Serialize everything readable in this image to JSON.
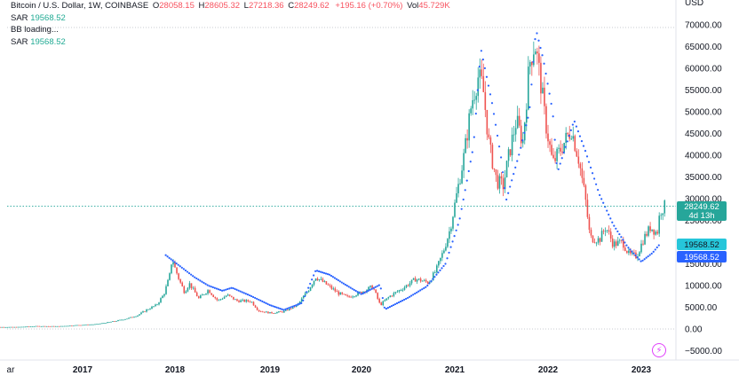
{
  "legend": {
    "symbol": "Bitcoin / U.S. Dollar, 1W, COINBASE",
    "open_key": "O",
    "open": "28058.15",
    "high_key": "H",
    "high": "28605.32",
    "low_key": "L",
    "low": "27218.36",
    "close_key": "C",
    "close": "28249.62",
    "change": "+195.16 (+0.70%)",
    "vol_key": "Vol",
    "vol": "45.729K",
    "indicators": [
      {
        "name": "SAR",
        "value": "19568.52"
      },
      {
        "name": "BB loading...",
        "value": ""
      },
      {
        "name": "SAR",
        "value": "19568.52"
      }
    ]
  },
  "colors": {
    "up": "#26a69a",
    "down": "#ef5350",
    "sar": "#2962ff",
    "price_line": "#26a69a",
    "sar_badge_teal": "#26c6da",
    "sar_badge_blue": "#2962ff"
  },
  "axis": {
    "currency": "USD",
    "right_ticks": [
      "70000.00",
      "65000.00",
      "60000.00",
      "55000.00",
      "50000.00",
      "45000.00",
      "40000.00",
      "35000.00",
      "30000.00",
      "25000.00",
      "20000.00",
      "15000.00",
      "10000.00",
      "5000.00",
      "0.00",
      "−5000.00"
    ],
    "x_ticks": [
      "ar",
      "2017",
      "2018",
      "2019",
      "2020",
      "2021",
      "2022",
      "2023"
    ]
  },
  "badges": {
    "price": "28249.62",
    "countdown": "4d 13h",
    "sar1": "19568.52",
    "sar2": "19568.52"
  },
  "chart_data": {
    "type": "candlestick",
    "title": "Bitcoin / U.S. Dollar, 1W, COINBASE",
    "ylim": [
      -5000,
      70000
    ],
    "xlim": [
      2016.0,
      2023.4
    ],
    "last_close": 28249.62,
    "sar_last": 19568.52,
    "price_path": [
      [
        2016.0,
        430
      ],
      [
        2016.3,
        450
      ],
      [
        2016.5,
        650
      ],
      [
        2016.75,
        620
      ],
      [
        2016.95,
        900
      ],
      [
        2017.15,
        1100
      ],
      [
        2017.35,
        1800
      ],
      [
        2017.5,
        2500
      ],
      [
        2017.6,
        3200
      ],
      [
        2017.7,
        4500
      ],
      [
        2017.8,
        5500
      ],
      [
        2017.88,
        8000
      ],
      [
        2017.94,
        12000
      ],
      [
        2017.97,
        16500
      ],
      [
        2018.0,
        14000
      ],
      [
        2018.05,
        11000
      ],
      [
        2018.1,
        8500
      ],
      [
        2018.15,
        10500
      ],
      [
        2018.25,
        7000
      ],
      [
        2018.35,
        9000
      ],
      [
        2018.45,
        6500
      ],
      [
        2018.55,
        7800
      ],
      [
        2018.65,
        6500
      ],
      [
        2018.8,
        6400
      ],
      [
        2018.88,
        4200
      ],
      [
        2019.0,
        3700
      ],
      [
        2019.15,
        4000
      ],
      [
        2019.3,
        5500
      ],
      [
        2019.42,
        9000
      ],
      [
        2019.5,
        12000
      ],
      [
        2019.6,
        10500
      ],
      [
        2019.75,
        8200
      ],
      [
        2019.85,
        7300
      ],
      [
        2020.0,
        8500
      ],
      [
        2020.12,
        9800
      ],
      [
        2020.2,
        5500
      ],
      [
        2020.3,
        7500
      ],
      [
        2020.45,
        9500
      ],
      [
        2020.58,
        11500
      ],
      [
        2020.72,
        10700
      ],
      [
        2020.8,
        13500
      ],
      [
        2020.88,
        18000
      ],
      [
        2020.95,
        23000
      ],
      [
        2021.03,
        32000
      ],
      [
        2021.1,
        40000
      ],
      [
        2021.18,
        52000
      ],
      [
        2021.25,
        58000
      ],
      [
        2021.3,
        56000
      ],
      [
        2021.37,
        42000
      ],
      [
        2021.45,
        34000
      ],
      [
        2021.52,
        33000
      ],
      [
        2021.58,
        40000
      ],
      [
        2021.66,
        48000
      ],
      [
        2021.73,
        43000
      ],
      [
        2021.8,
        61000
      ],
      [
        2021.86,
        66000
      ],
      [
        2021.92,
        57000
      ],
      [
        2021.97,
        48000
      ],
      [
        2022.05,
        38000
      ],
      [
        2022.15,
        42000
      ],
      [
        2022.25,
        46000
      ],
      [
        2022.33,
        39000
      ],
      [
        2022.4,
        30000
      ],
      [
        2022.45,
        21000
      ],
      [
        2022.55,
        20500
      ],
      [
        2022.62,
        23500
      ],
      [
        2022.7,
        19500
      ],
      [
        2022.8,
        20000
      ],
      [
        2022.87,
        17000
      ],
      [
        2022.95,
        16800
      ],
      [
        2023.03,
        21000
      ],
      [
        2023.1,
        23500
      ],
      [
        2023.17,
        22000
      ],
      [
        2023.2,
        27000
      ],
      [
        2023.25,
        28250
      ]
    ],
    "sar_path": [
      [
        2017.9,
        17000
      ],
      [
        2018.05,
        14500
      ],
      [
        2018.2,
        12000
      ],
      [
        2018.35,
        10000
      ],
      [
        2018.5,
        8800
      ],
      [
        2018.6,
        9500
      ],
      [
        2018.8,
        7600
      ],
      [
        2019.0,
        5500
      ],
      [
        2019.15,
        4400
      ],
      [
        2019.35,
        6000
      ],
      [
        2019.5,
        13500
      ],
      [
        2019.65,
        12500
      ],
      [
        2019.8,
        10500
      ],
      [
        2020.0,
        8000
      ],
      [
        2020.2,
        10200
      ],
      [
        2020.25,
        4500
      ],
      [
        2020.5,
        7200
      ],
      [
        2020.7,
        9800
      ],
      [
        2020.9,
        15000
      ],
      [
        2021.05,
        25000
      ],
      [
        2021.2,
        42000
      ],
      [
        2021.28,
        64500
      ],
      [
        2021.4,
        52000
      ],
      [
        2021.5,
        39000
      ],
      [
        2021.55,
        29500
      ],
      [
        2021.7,
        41000
      ],
      [
        2021.8,
        50000
      ],
      [
        2021.87,
        69000
      ],
      [
        2021.95,
        62000
      ],
      [
        2022.05,
        50000
      ],
      [
        2022.1,
        36000
      ],
      [
        2022.28,
        48000
      ],
      [
        2022.4,
        41000
      ],
      [
        2022.55,
        31000
      ],
      [
        2022.7,
        24000
      ],
      [
        2022.85,
        19000
      ],
      [
        2023.0,
        15500
      ],
      [
        2023.12,
        17500
      ],
      [
        2023.2,
        19568
      ]
    ]
  }
}
